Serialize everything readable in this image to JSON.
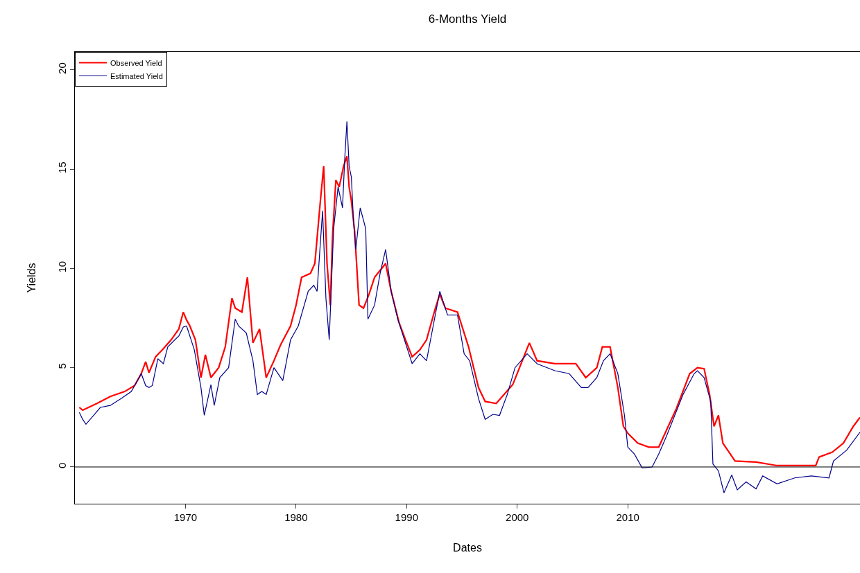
{
  "chart_data": {
    "type": "line",
    "title": "6-Months Yield",
    "xlabel": "Dates",
    "ylabel": "Yields",
    "xlim": [
      1960,
      2031
    ],
    "xticks": [
      1970,
      1980,
      1990,
      2000,
      2010
    ],
    "ylim": [
      -1.85,
      20.9
    ],
    "yticks": [
      0,
      5,
      10,
      15,
      20
    ],
    "grid": false,
    "legend": "top left",
    "line_style": "solid",
    "marker": "none",
    "ref_lines": [
      {
        "axis": "y",
        "value": 0,
        "color": "#000000"
      }
    ],
    "series": [
      {
        "name": "Observed Yield",
        "color": "#ff0000",
        "x": [
          1960.4,
          1960.7,
          1962.0,
          1963.2,
          1964.5,
          1965.4,
          1966.0,
          1966.4,
          1966.7,
          1967.3,
          1967.9,
          1968.7,
          1969.4,
          1969.8,
          1970.1,
          1970.4,
          1970.9,
          1971.4,
          1971.8,
          1972.3,
          1973.0,
          1973.6,
          1974.2,
          1974.5,
          1975.1,
          1975.6,
          1976.1,
          1976.7,
          1977.3,
          1978.0,
          1978.6,
          1979.5,
          1980.0,
          1980.5,
          1981.3,
          1981.7,
          1982.2,
          1982.5,
          1982.8,
          1983.1,
          1983.3,
          1983.6,
          1983.9,
          1984.3,
          1984.6,
          1984.8,
          1985.0,
          1985.3,
          1985.7,
          1986.1,
          1986.6,
          1987.1,
          1987.6,
          1988.1,
          1988.6,
          1989.3,
          1989.9,
          1990.5,
          1991.2,
          1991.8,
          1992.6,
          1993.0,
          1993.5,
          1994.6,
          1995.6,
          1996.5,
          1997.1,
          1998.1,
          1999.6,
          2001.1,
          2001.8,
          2003.4,
          2005.3,
          2006.2,
          2007.2,
          2007.7,
          2008.4,
          2009.1,
          2009.6,
          2010.0,
          2010.9,
          2011.9,
          2012.8,
          2014.4,
          2015.6,
          2016.3,
          2016.9,
          2017.4,
          2017.8,
          2018.2,
          2018.6,
          2019.7,
          2021.6,
          2023.5,
          2025.4,
          2027.0,
          2027.3,
          2028.5,
          2029.5,
          2030.4,
          2031.0
        ],
        "values": [
          3.0,
          2.86,
          3.2,
          3.55,
          3.8,
          4.1,
          4.7,
          5.3,
          4.75,
          5.55,
          5.9,
          6.4,
          6.95,
          7.8,
          7.4,
          7.1,
          6.4,
          4.5,
          5.65,
          4.5,
          5.0,
          6.05,
          8.5,
          8.0,
          7.8,
          9.55,
          6.25,
          6.95,
          4.5,
          5.35,
          6.15,
          7.1,
          8.15,
          9.55,
          9.75,
          10.25,
          13.4,
          15.15,
          10.25,
          8.15,
          11.65,
          14.45,
          14.1,
          15.15,
          15.65,
          14.1,
          13.4,
          11.85,
          8.15,
          8.0,
          8.7,
          9.55,
          9.9,
          10.25,
          8.85,
          7.3,
          6.4,
          5.55,
          5.9,
          6.4,
          8.0,
          8.7,
          8.0,
          7.8,
          6.05,
          4.0,
          3.3,
          3.2,
          4.15,
          6.25,
          5.35,
          5.2,
          5.2,
          4.5,
          5.0,
          6.05,
          6.05,
          4.0,
          2.05,
          1.7,
          1.2,
          1.0,
          1.0,
          2.95,
          4.7,
          5.0,
          4.95,
          3.65,
          2.05,
          2.6,
          1.2,
          0.3,
          0.25,
          0.07,
          0.07,
          0.07,
          0.5,
          0.75,
          1.2,
          2.05,
          2.5
        ]
      },
      {
        "name": "Estimated Yield",
        "color": "#00008b",
        "x": [
          1960.4,
          1960.7,
          1961.0,
          1961.7,
          1962.3,
          1963.2,
          1964.2,
          1965.1,
          1966.0,
          1966.4,
          1966.7,
          1967.0,
          1967.5,
          1968.0,
          1968.4,
          1969.4,
          1969.8,
          1970.1,
          1970.8,
          1971.4,
          1971.7,
          1972.3,
          1972.6,
          1973.1,
          1973.9,
          1974.5,
          1974.8,
          1975.5,
          1976.1,
          1976.5,
          1976.9,
          1977.3,
          1978.0,
          1978.8,
          1979.5,
          1980.2,
          1981.1,
          1981.6,
          1981.9,
          1982.2,
          1982.4,
          1982.7,
          1983.0,
          1983.4,
          1983.8,
          1984.2,
          1984.4,
          1984.6,
          1984.8,
          1985.0,
          1985.2,
          1985.4,
          1985.8,
          1986.3,
          1986.5,
          1987.1,
          1987.6,
          1988.1,
          1988.6,
          1989.2,
          1989.6,
          1990.5,
          1991.2,
          1991.8,
          1992.4,
          1993.0,
          1993.7,
          1994.6,
          1995.2,
          1995.7,
          1996.5,
          1997.1,
          1997.8,
          1998.4,
          1999.1,
          1999.8,
          2000.9,
          2001.8,
          2003.4,
          2004.7,
          2005.8,
          2006.4,
          2007.2,
          2007.8,
          2008.4,
          2009.1,
          2009.7,
          2010.0,
          2010.6,
          2011.3,
          2012.2,
          2012.8,
          2013.5,
          2015.0,
          2016.0,
          2016.3,
          2016.9,
          2017.5,
          2017.7,
          2018.2,
          2018.7,
          2019.4,
          2019.9,
          2020.7,
          2021.6,
          2022.2,
          2023.5,
          2025.1,
          2026.6,
          2028.2,
          2028.6,
          2029.8,
          2031.0
        ],
        "values": [
          2.75,
          2.4,
          2.15,
          2.6,
          3.0,
          3.1,
          3.45,
          3.8,
          4.7,
          4.1,
          4.0,
          4.1,
          5.45,
          5.2,
          6.05,
          6.6,
          7.05,
          7.1,
          5.9,
          4.0,
          2.6,
          4.15,
          3.1,
          4.5,
          5.0,
          7.45,
          7.1,
          6.75,
          5.35,
          3.65,
          3.8,
          3.65,
          5.0,
          4.35,
          6.4,
          7.1,
          8.85,
          9.15,
          8.85,
          11.3,
          12.9,
          8.5,
          6.4,
          12.0,
          14.1,
          13.05,
          15.5,
          17.4,
          15.15,
          14.6,
          12.35,
          10.95,
          13.05,
          12.0,
          7.45,
          8.15,
          9.75,
          10.95,
          8.85,
          7.45,
          6.75,
          5.2,
          5.7,
          5.35,
          7.1,
          8.85,
          7.65,
          7.65,
          5.7,
          5.35,
          3.45,
          2.4,
          2.65,
          2.6,
          3.65,
          5.0,
          5.7,
          5.2,
          4.85,
          4.7,
          4.0,
          4.0,
          4.5,
          5.35,
          5.7,
          4.7,
          2.6,
          1.0,
          0.65,
          -0.05,
          0.0,
          0.65,
          1.55,
          3.65,
          4.7,
          4.85,
          4.5,
          3.3,
          0.15,
          -0.2,
          -1.3,
          -0.4,
          -1.15,
          -0.75,
          -1.1,
          -0.45,
          -0.85,
          -0.55,
          -0.45,
          -0.55,
          0.3,
          0.85,
          1.75
        ]
      }
    ]
  }
}
